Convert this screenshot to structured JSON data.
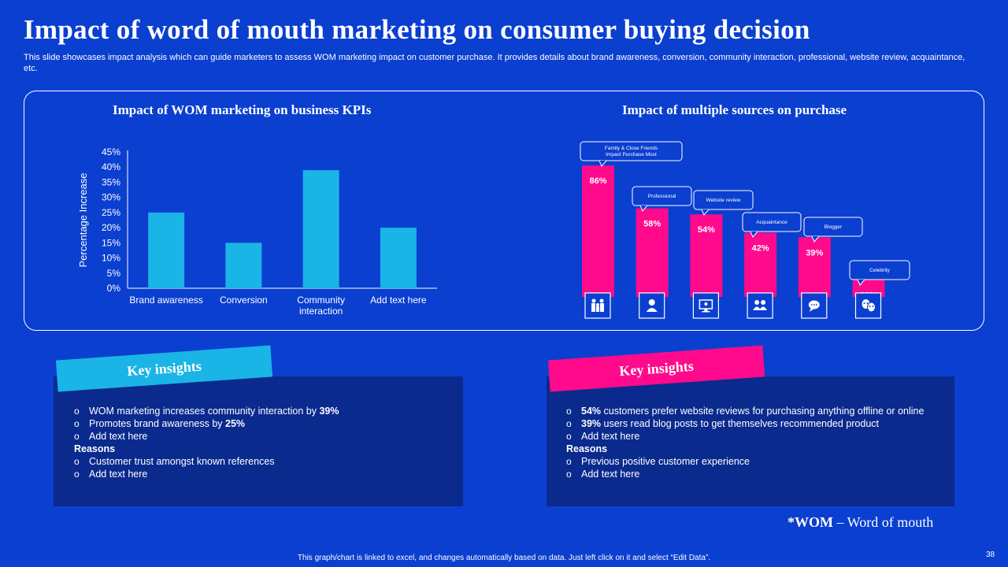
{
  "title": "Impact of word of mouth marketing on consumer buying decision",
  "subtitle": "This slide showcases impact analysis which can guide marketers to assess WOM marketing impact on customer purchase. It provides details about brand awareness, conversion, community interaction, professional, website review, acquaintance, etc.",
  "chart_titles": {
    "left": "Impact of WOM marketing on business KPIs",
    "right": "Impact of multiple sources on purchase"
  },
  "colors": {
    "background": "#0a3fd0",
    "bar_cyan": "#1ab4e6",
    "bar_pink": "#ff0a8c",
    "box_dark": "#0a2a8e"
  },
  "chart_data": [
    {
      "type": "bar",
      "title": "Impact of WOM marketing on business KPIs",
      "categories": [
        "Brand awareness",
        "Conversion",
        "Community interaction",
        "Add text here"
      ],
      "values": [
        25,
        15,
        39,
        20
      ],
      "ylabel": "Percentage Increase",
      "yticks": [
        "0%",
        "5%",
        "10%",
        "15%",
        "20%",
        "25%",
        "30%",
        "35%",
        "40%",
        "45%"
      ],
      "ylim": [
        0,
        45
      ],
      "grid": false
    },
    {
      "type": "bar",
      "title": "Impact of multiple sources on purchase",
      "categories": [
        "Family & Close Friends Impact Purchase Most",
        "Professional",
        "Website review",
        "Acquaintance",
        "Blogger",
        "Celebrity"
      ],
      "values": [
        86,
        58,
        54,
        42,
        39,
        11
      ],
      "value_labels": [
        "86%",
        "58%",
        "54%",
        "42%",
        "39%",
        "11%"
      ],
      "callouts": [
        "Family & Close Friends",
        "Impact Purchase Most",
        "Professional",
        "Website review",
        "Acquaintance",
        "Blogger",
        "Celebrity"
      ],
      "icons": [
        "family-icon",
        "person-icon",
        "monitor-icon",
        "group-icon",
        "chat-bubble-icon",
        "theater-masks-icon"
      ],
      "ylim": [
        0,
        100
      ]
    }
  ],
  "insights_left": {
    "heading": "Key insights",
    "items": [
      {
        "type": "bullet",
        "text": "WOM marketing increases community interaction by ",
        "bold": "39%"
      },
      {
        "type": "bullet",
        "text": "Promotes brand  awareness  by ",
        "bold": "25%"
      },
      {
        "type": "bullet",
        "text": "Add text here",
        "bold": ""
      },
      {
        "type": "head",
        "text": "Reasons",
        "bold": ""
      },
      {
        "type": "bullet",
        "text": "Customer trust amongst known references",
        "bold": ""
      },
      {
        "type": "bullet",
        "text": "Add text here",
        "bold": ""
      }
    ]
  },
  "insights_right": {
    "heading": "Key insights",
    "items": [
      {
        "type": "bullet",
        "boldpre": "54%",
        "text": " customers prefer website reviews  for purchasing anything offline  or online"
      },
      {
        "type": "bullet",
        "boldpre": "39%",
        "text": " users read blog posts to get themselves recommended product"
      },
      {
        "type": "bullet",
        "boldpre": "",
        "text": "Add text here"
      },
      {
        "type": "head",
        "boldpre": "",
        "text": "Reasons"
      },
      {
        "type": "bullet",
        "boldpre": "",
        "text": "Previous  positive  customer experience"
      },
      {
        "type": "bullet",
        "boldpre": "",
        "text": "Add text here"
      }
    ]
  },
  "wom_note": {
    "abbr": "*WOM",
    "rest": " – Word of mouth"
  },
  "footer": "This graph/chart is linked to excel, and changes automatically based on data. Just left click on it and select “Edit Data”.",
  "page_number": "38"
}
